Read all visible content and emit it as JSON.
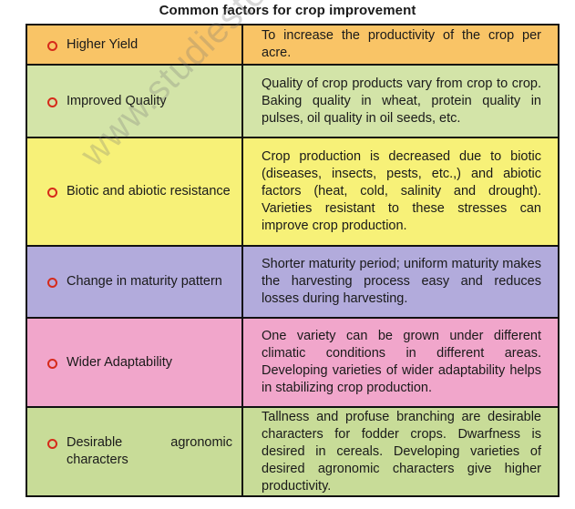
{
  "title": "Common factors for crop improvement",
  "watermark": "www.studiestoday.com",
  "colors": {
    "row_orange": "#f9c466",
    "row_green": "#d3e4a8",
    "row_yellow": "#f7f178",
    "row_purple": "#b2abdc",
    "row_pink": "#f1a6cb",
    "row_olive": "#c8dc98",
    "bullet": "#d62a1a",
    "border": "#111111"
  },
  "rows": [
    {
      "factor": "Higher Yield",
      "description": "To increase the productivity of the crop per acre.",
      "color": "#f9c466"
    },
    {
      "factor": "Improved Quality",
      "description": "Quality of crop products vary from crop to crop. Baking quality in wheat, protein quality in pulses, oil quality in oil seeds, etc.",
      "color": "#d3e4a8"
    },
    {
      "factor": "Biotic and abiotic resistance",
      "description": "Crop production is decreased due to biotic (diseases, insects, pests, etc.,) and abiotic factors (heat, cold, salinity and drought). Varieties resistant to these stresses can improve crop production.",
      "color": "#f7f178"
    },
    {
      "factor": "Change in maturity pattern",
      "description": "Shorter maturity period; uniform maturity makes the harvesting process easy and reduces losses during harvesting.",
      "color": "#b2abdc"
    },
    {
      "factor": "Wider Adaptability",
      "description": "One variety can be grown under different climatic conditions in different areas. Developing varieties of wider adaptability helps in stabilizing crop production.",
      "color": "#f1a6cb"
    },
    {
      "factor": "Desirable agronomic characters",
      "description": "Tallness and profuse branching are desirable characters for fodder crops. Dwarfness is desired in cereals. Developing varieties of desired agronomic characters give higher productivity.",
      "color": "#c8dc98"
    }
  ]
}
